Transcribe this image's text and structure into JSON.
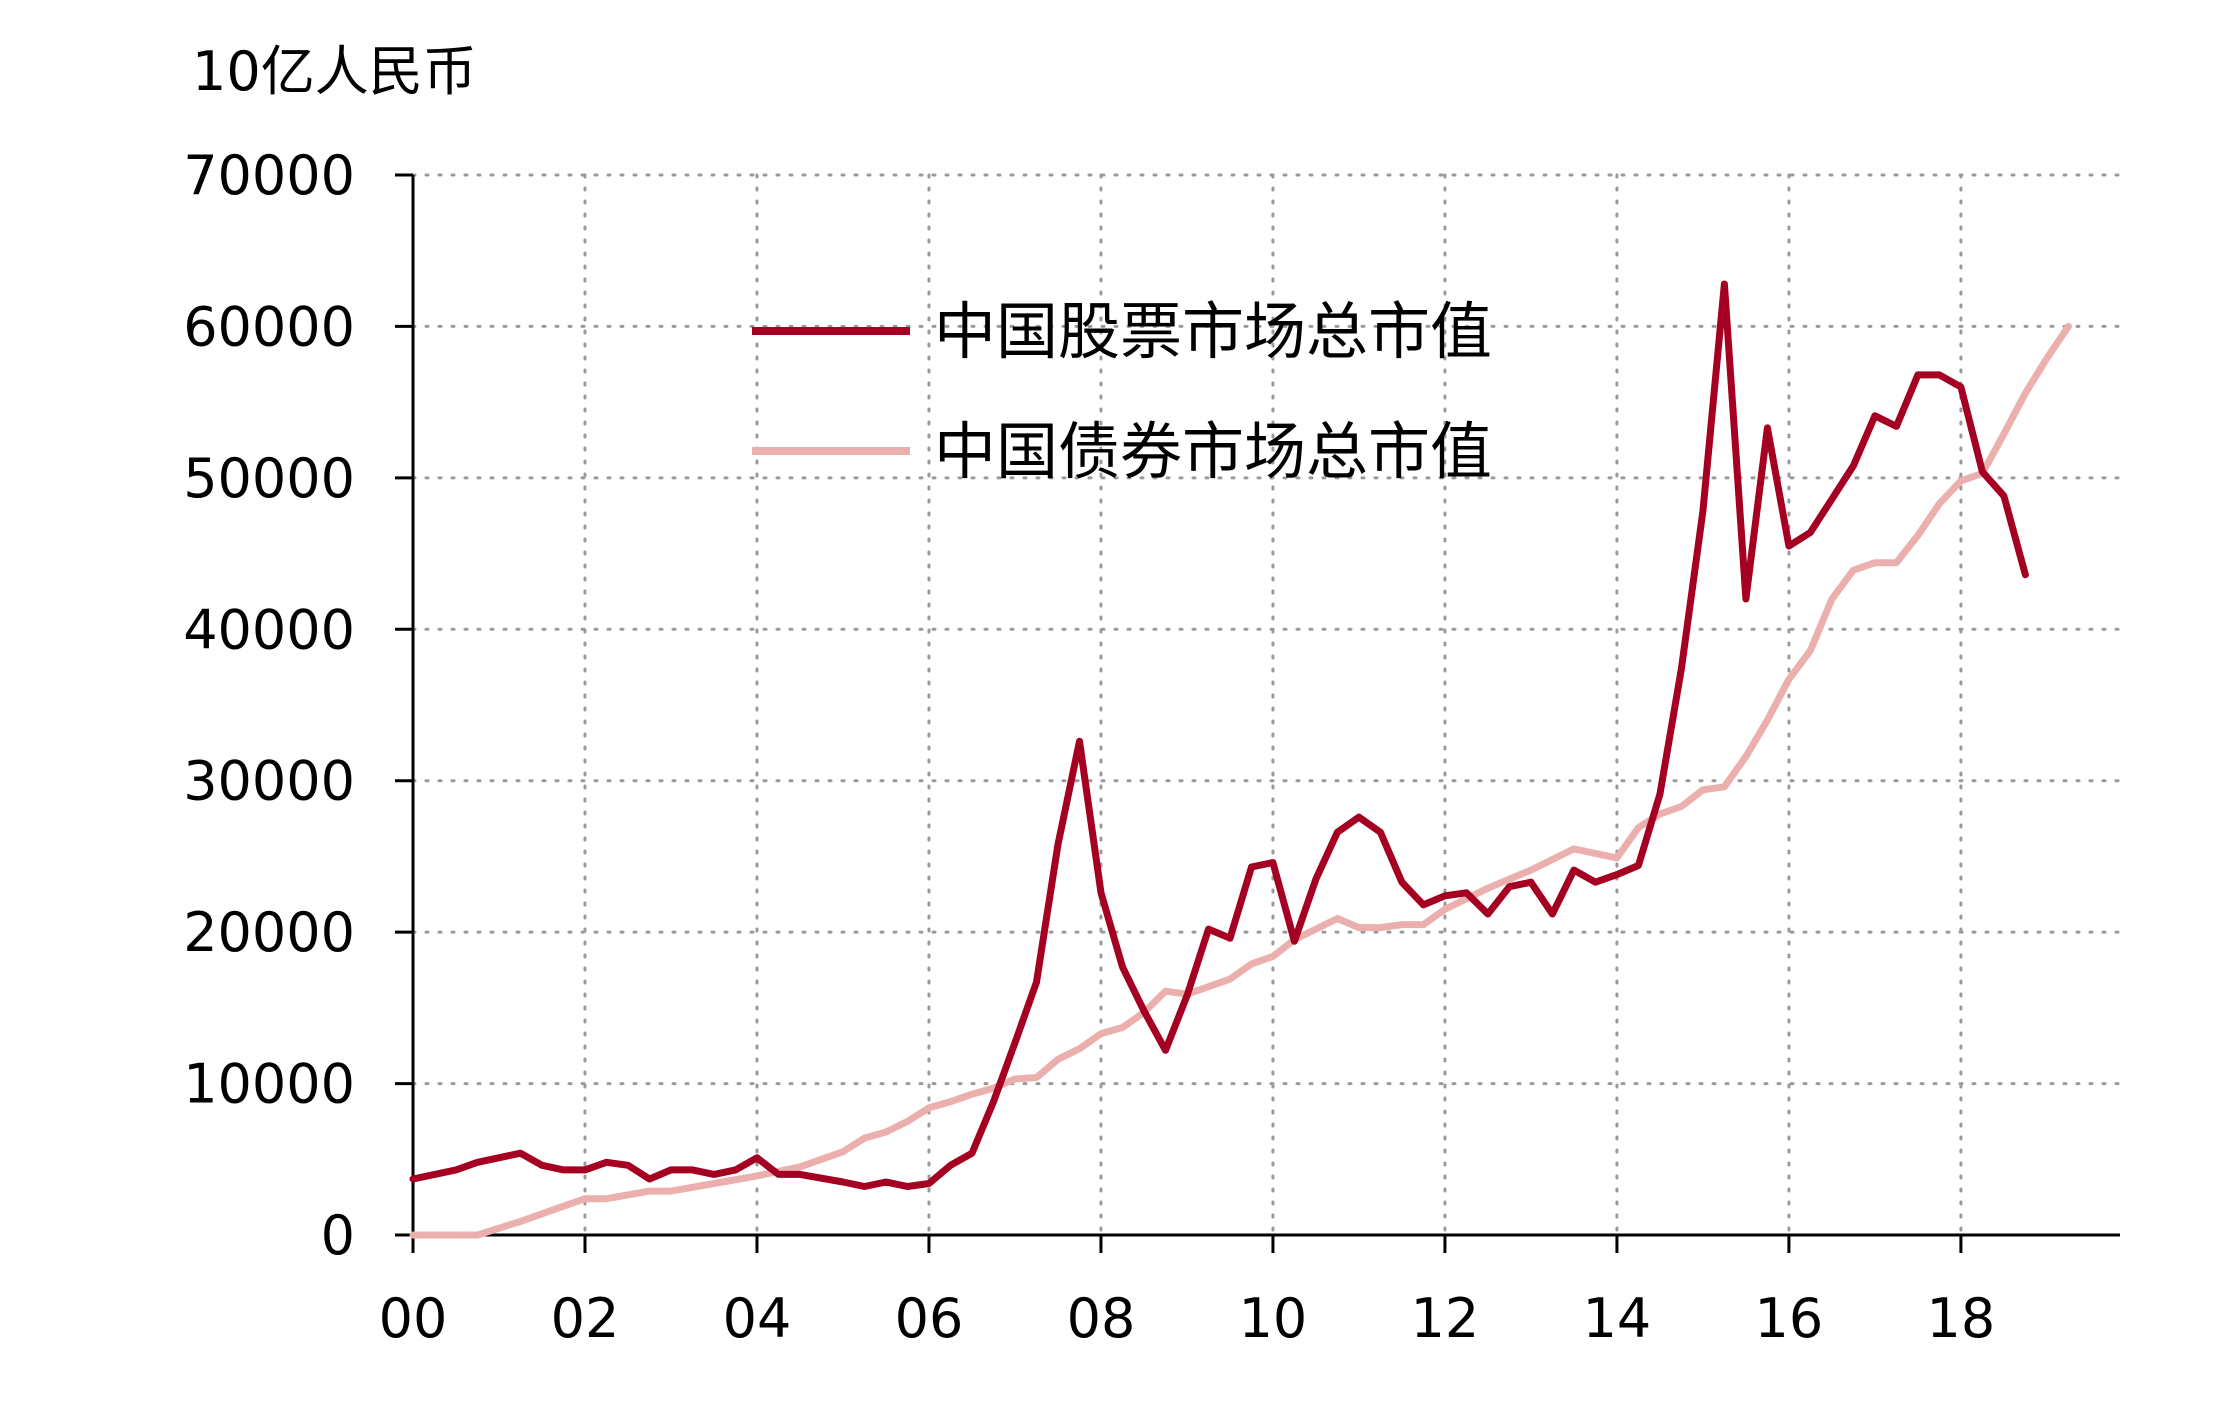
{
  "chart_data": {
    "type": "line",
    "unit_label": "10亿人民币",
    "x_tick_labels": [
      "00",
      "02",
      "04",
      "06",
      "08",
      "10",
      "12",
      "14",
      "16",
      "18"
    ],
    "x_ticks": [
      2000,
      2002,
      2004,
      2006,
      2008,
      2010,
      2012,
      2014,
      2016,
      2018
    ],
    "xlim": [
      2000,
      2019.85
    ],
    "y_tick_labels": [
      "0",
      "10000",
      "20000",
      "30000",
      "40000",
      "50000",
      "60000",
      "70000"
    ],
    "y_ticks": [
      0,
      10000,
      20000,
      30000,
      40000,
      50000,
      60000,
      70000
    ],
    "ylim": [
      0,
      70000
    ],
    "grid": true,
    "legend_position": "top-center",
    "series": [
      {
        "name": "中国股票市场总市值",
        "color": "#a50021",
        "points": [
          [
            2000.0,
            3700
          ],
          [
            2000.5,
            4300
          ],
          [
            2000.75,
            4800
          ],
          [
            2001.25,
            5400
          ],
          [
            2001.5,
            4600
          ],
          [
            2001.75,
            4300
          ],
          [
            2002.0,
            4300
          ],
          [
            2002.25,
            4800
          ],
          [
            2002.5,
            4600
          ],
          [
            2002.75,
            3700
          ],
          [
            2003.0,
            4300
          ],
          [
            2003.25,
            4300
          ],
          [
            2003.5,
            4000
          ],
          [
            2003.75,
            4300
          ],
          [
            2004.0,
            5100
          ],
          [
            2004.25,
            4000
          ],
          [
            2004.5,
            4000
          ],
          [
            2005.0,
            3500
          ],
          [
            2005.25,
            3200
          ],
          [
            2005.5,
            3500
          ],
          [
            2005.75,
            3200
          ],
          [
            2006.0,
            3400
          ],
          [
            2006.25,
            4600
          ],
          [
            2006.5,
            5400
          ],
          [
            2006.75,
            8800
          ],
          [
            2007.0,
            12700
          ],
          [
            2007.25,
            16700
          ],
          [
            2007.5,
            25800
          ],
          [
            2007.75,
            32600
          ],
          [
            2008.0,
            22600
          ],
          [
            2008.25,
            17700
          ],
          [
            2008.5,
            14800
          ],
          [
            2008.75,
            12200
          ],
          [
            2009.0,
            15800
          ],
          [
            2009.25,
            20200
          ],
          [
            2009.5,
            19600
          ],
          [
            2009.75,
            24300
          ],
          [
            2010.0,
            24600
          ],
          [
            2010.25,
            19400
          ],
          [
            2010.5,
            23500
          ],
          [
            2010.75,
            26600
          ],
          [
            2011.0,
            27600
          ],
          [
            2011.25,
            26600
          ],
          [
            2011.5,
            23300
          ],
          [
            2011.75,
            21800
          ],
          [
            2012.0,
            22400
          ],
          [
            2012.25,
            22600
          ],
          [
            2012.5,
            21200
          ],
          [
            2012.75,
            23000
          ],
          [
            2013.0,
            23300
          ],
          [
            2013.25,
            21200
          ],
          [
            2013.5,
            24100
          ],
          [
            2013.75,
            23300
          ],
          [
            2014.0,
            23800
          ],
          [
            2014.25,
            24400
          ],
          [
            2014.5,
            29100
          ],
          [
            2014.75,
            37400
          ],
          [
            2015.0,
            47800
          ],
          [
            2015.25,
            62800
          ],
          [
            2015.5,
            42000
          ],
          [
            2015.75,
            53300
          ],
          [
            2016.0,
            45500
          ],
          [
            2016.25,
            46400
          ],
          [
            2016.5,
            48600
          ],
          [
            2016.75,
            50800
          ],
          [
            2017.0,
            54100
          ],
          [
            2017.25,
            53400
          ],
          [
            2017.5,
            56800
          ],
          [
            2017.75,
            56800
          ],
          [
            2018.0,
            56000
          ],
          [
            2018.25,
            50400
          ],
          [
            2018.5,
            48800
          ],
          [
            2018.75,
            43600
          ]
        ]
      },
      {
        "name": "中国债券市场总市值",
        "color": "#ebb0ae",
        "points": [
          [
            2000.0,
            0
          ],
          [
            2000.75,
            0
          ],
          [
            2001.25,
            900
          ],
          [
            2001.75,
            1900
          ],
          [
            2002.0,
            2400
          ],
          [
            2002.25,
            2400
          ],
          [
            2002.75,
            2900
          ],
          [
            2003.0,
            2900
          ],
          [
            2003.5,
            3400
          ],
          [
            2004.0,
            3900
          ],
          [
            2004.5,
            4500
          ],
          [
            2005.0,
            5500
          ],
          [
            2005.25,
            6400
          ],
          [
            2005.5,
            6800
          ],
          [
            2005.75,
            7500
          ],
          [
            2006.0,
            8400
          ],
          [
            2006.25,
            8800
          ],
          [
            2006.5,
            9300
          ],
          [
            2006.75,
            9700
          ],
          [
            2007.0,
            10300
          ],
          [
            2007.25,
            10400
          ],
          [
            2007.5,
            11600
          ],
          [
            2007.75,
            12300
          ],
          [
            2008.0,
            13300
          ],
          [
            2008.25,
            13700
          ],
          [
            2008.5,
            14700
          ],
          [
            2008.75,
            16100
          ],
          [
            2009.0,
            15900
          ],
          [
            2009.25,
            16400
          ],
          [
            2009.5,
            16900
          ],
          [
            2009.75,
            17900
          ],
          [
            2010.0,
            18400
          ],
          [
            2010.25,
            19500
          ],
          [
            2010.5,
            20200
          ],
          [
            2010.75,
            20900
          ],
          [
            2011.0,
            20300
          ],
          [
            2011.25,
            20300
          ],
          [
            2011.5,
            20500
          ],
          [
            2011.75,
            20500
          ],
          [
            2012.0,
            21500
          ],
          [
            2012.25,
            22200
          ],
          [
            2012.5,
            22900
          ],
          [
            2012.75,
            23500
          ],
          [
            2013.0,
            24100
          ],
          [
            2013.25,
            24800
          ],
          [
            2013.5,
            25500
          ],
          [
            2013.75,
            25200
          ],
          [
            2014.0,
            24900
          ],
          [
            2014.25,
            26900
          ],
          [
            2014.5,
            27800
          ],
          [
            2014.75,
            28300
          ],
          [
            2015.0,
            29400
          ],
          [
            2015.25,
            29600
          ],
          [
            2015.5,
            31600
          ],
          [
            2015.75,
            34000
          ],
          [
            2016.0,
            36700
          ],
          [
            2016.25,
            38600
          ],
          [
            2016.5,
            42000
          ],
          [
            2016.75,
            43900
          ],
          [
            2017.0,
            44400
          ],
          [
            2017.25,
            44400
          ],
          [
            2017.5,
            46200
          ],
          [
            2017.75,
            48300
          ],
          [
            2018.0,
            49800
          ],
          [
            2018.25,
            50300
          ],
          [
            2018.5,
            52900
          ],
          [
            2018.75,
            55600
          ],
          [
            2019.0,
            57900
          ],
          [
            2019.25,
            60000
          ]
        ]
      }
    ]
  }
}
